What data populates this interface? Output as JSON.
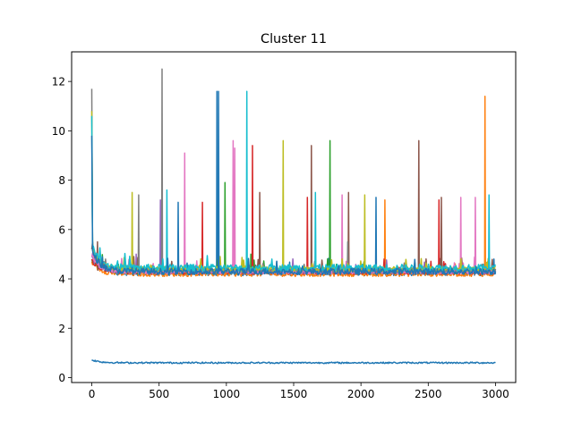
{
  "chart_data": {
    "type": "line",
    "title": "Cluster 11",
    "xlabel": "",
    "ylabel": "",
    "xlim": [
      -150,
      3150
    ],
    "ylim": [
      -0.2,
      13.2
    ],
    "xticks": [
      0,
      500,
      1000,
      1500,
      2000,
      2500,
      3000
    ],
    "yticks": [
      0,
      2,
      4,
      6,
      8,
      10,
      12
    ],
    "grid": false,
    "legend": "none",
    "x_range": [
      0,
      3000
    ],
    "series": [
      {
        "color": "#1f77b4",
        "start": 4.9,
        "base": 4.25,
        "noise": 0.12,
        "spikes": [
          [
            930,
            11.6
          ],
          [
            2110,
            7.3
          ],
          [
            2990,
            4.8
          ]
        ]
      },
      {
        "color": "#ff7f0e",
        "start": 4.7,
        "base": 4.2,
        "noise": 0.1,
        "spikes": [
          [
            2180,
            7.2
          ],
          [
            2920,
            11.4
          ]
        ]
      },
      {
        "color": "#2ca02c",
        "start": 4.8,
        "base": 4.3,
        "noise": 0.1,
        "spikes": [
          [
            990,
            7.9
          ],
          [
            1770,
            9.6
          ],
          [
            1180,
            5.0
          ]
        ]
      },
      {
        "color": "#d62728",
        "start": 4.8,
        "base": 4.3,
        "noise": 0.12,
        "spikes": [
          [
            820,
            7.1
          ],
          [
            1195,
            9.4
          ],
          [
            1600,
            7.3
          ],
          [
            2580,
            7.2
          ]
        ]
      },
      {
        "color": "#9467bd",
        "start": 4.9,
        "base": 4.3,
        "noise": 0.1,
        "spikes": [
          [
            510,
            7.2
          ],
          [
            330,
            5.0
          ]
        ]
      },
      {
        "color": "#8c564b",
        "start": 5.2,
        "base": 4.35,
        "noise": 0.1,
        "spikes": [
          [
            40,
            5.5
          ],
          [
            1250,
            7.5
          ],
          [
            1630,
            9.4
          ],
          [
            1910,
            7.5
          ],
          [
            2430,
            9.6
          ],
          [
            2600,
            7.3
          ]
        ]
      },
      {
        "color": "#e377c2",
        "start": 4.9,
        "base": 4.3,
        "noise": 0.1,
        "spikes": [
          [
            690,
            9.1
          ],
          [
            1050,
            9.6
          ],
          [
            1060,
            9.3
          ],
          [
            1860,
            7.4
          ],
          [
            2740,
            7.3
          ],
          [
            2850,
            7.3
          ]
        ]
      },
      {
        "color": "#7f7f7f",
        "start": 11.7,
        "base": 4.35,
        "noise": 0.1,
        "spikes": [
          [
            520,
            12.5
          ],
          [
            350,
            7.4
          ],
          [
            1900,
            5.5
          ]
        ]
      },
      {
        "color": "#bcbd22",
        "start": 10.8,
        "base": 4.4,
        "noise": 0.1,
        "spikes": [
          [
            300,
            7.5
          ],
          [
            1420,
            9.6
          ],
          [
            2030,
            7.4
          ]
        ]
      },
      {
        "color": "#17becf",
        "start": 10.6,
        "base": 4.45,
        "noise": 0.14,
        "spikes": [
          [
            560,
            7.6
          ],
          [
            1150,
            11.6
          ],
          [
            1660,
            7.5
          ],
          [
            2950,
            7.4
          ]
        ]
      },
      {
        "color": "#1f77b4",
        "start": 9.8,
        "base": 4.3,
        "noise": 0.13,
        "spikes": [
          [
            640,
            7.1
          ],
          [
            940,
            11.6
          ]
        ]
      },
      {
        "color": "#1f77b4",
        "start": 0.72,
        "base": 0.6,
        "noise": 0.03,
        "spikes": []
      }
    ]
  }
}
